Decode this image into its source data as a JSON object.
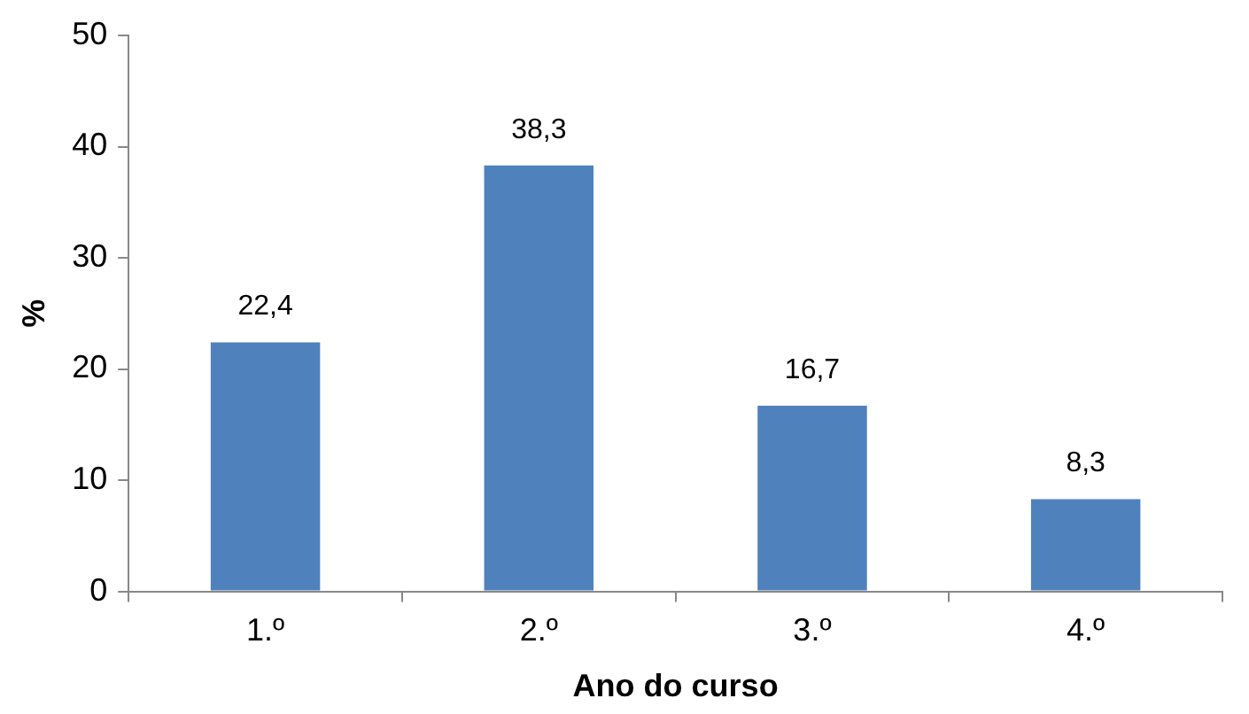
{
  "chart_data": {
    "type": "bar",
    "xlabel": "Ano do curso",
    "ylabel": "%",
    "categories": [
      "1.º",
      "2.º",
      "3.º",
      "4.º"
    ],
    "values": [
      22.4,
      38.3,
      16.7,
      8.3
    ],
    "value_labels": [
      "22,4",
      "38,3",
      "16,7",
      "8,3"
    ],
    "color": "#4f81bd",
    "ylim": [
      0,
      50
    ],
    "yticks": [
      0,
      10,
      20,
      30,
      40,
      50
    ]
  }
}
